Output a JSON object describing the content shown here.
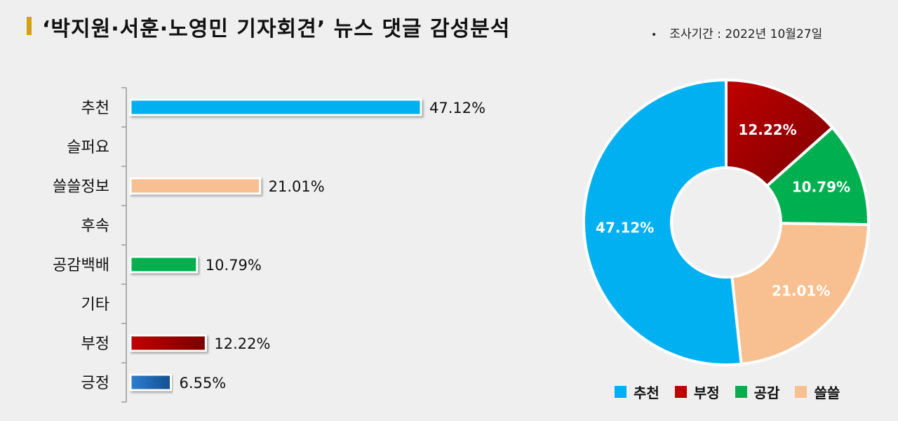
{
  "title": "‘박지원·서훈·노영민 기자회견’ 뉴스 댓글 감성분석",
  "period": "조사기간 : 2022년 10월27일",
  "chart_data": [
    {
      "type": "bar",
      "orientation": "horizontal",
      "categories": [
        "추천",
        "슬퍼요",
        "쓸쓸정보",
        "후속",
        "공감백배",
        "기타",
        "부정",
        "긍정"
      ],
      "values": [
        47.12,
        null,
        21.01,
        null,
        10.79,
        null,
        12.22,
        6.55
      ],
      "value_labels": [
        "47.12%",
        "",
        "21.01%",
        "",
        "10.79%",
        "",
        "12.22%",
        "6.55%"
      ],
      "colors": [
        "#00b0f0",
        "#f8c090",
        "#f8c090",
        "#f8c090",
        "#00b050",
        "#c00000",
        "#c00000",
        "#1f6fbf"
      ],
      "xlim": [
        0,
        50
      ]
    },
    {
      "type": "pie",
      "donut": true,
      "slices": [
        {
          "name": "추천",
          "value": 47.12,
          "label": "47.12%",
          "color": "#00b0f0"
        },
        {
          "name": "부정",
          "value": 12.22,
          "label": "12.22%",
          "color": "#c00000"
        },
        {
          "name": "공감",
          "value": 10.79,
          "label": "10.79%",
          "color": "#00b050"
        },
        {
          "name": "쓸쓸",
          "value": 21.01,
          "label": "21.01%",
          "color": "#f8c090"
        }
      ],
      "slice_order_clockwise_from_top": [
        "부정",
        "공감",
        "쓸쓸",
        "추천"
      ],
      "legend": [
        "추천",
        "부정",
        "공감",
        "쓸쓸"
      ],
      "legend_placement": "bottom"
    }
  ]
}
